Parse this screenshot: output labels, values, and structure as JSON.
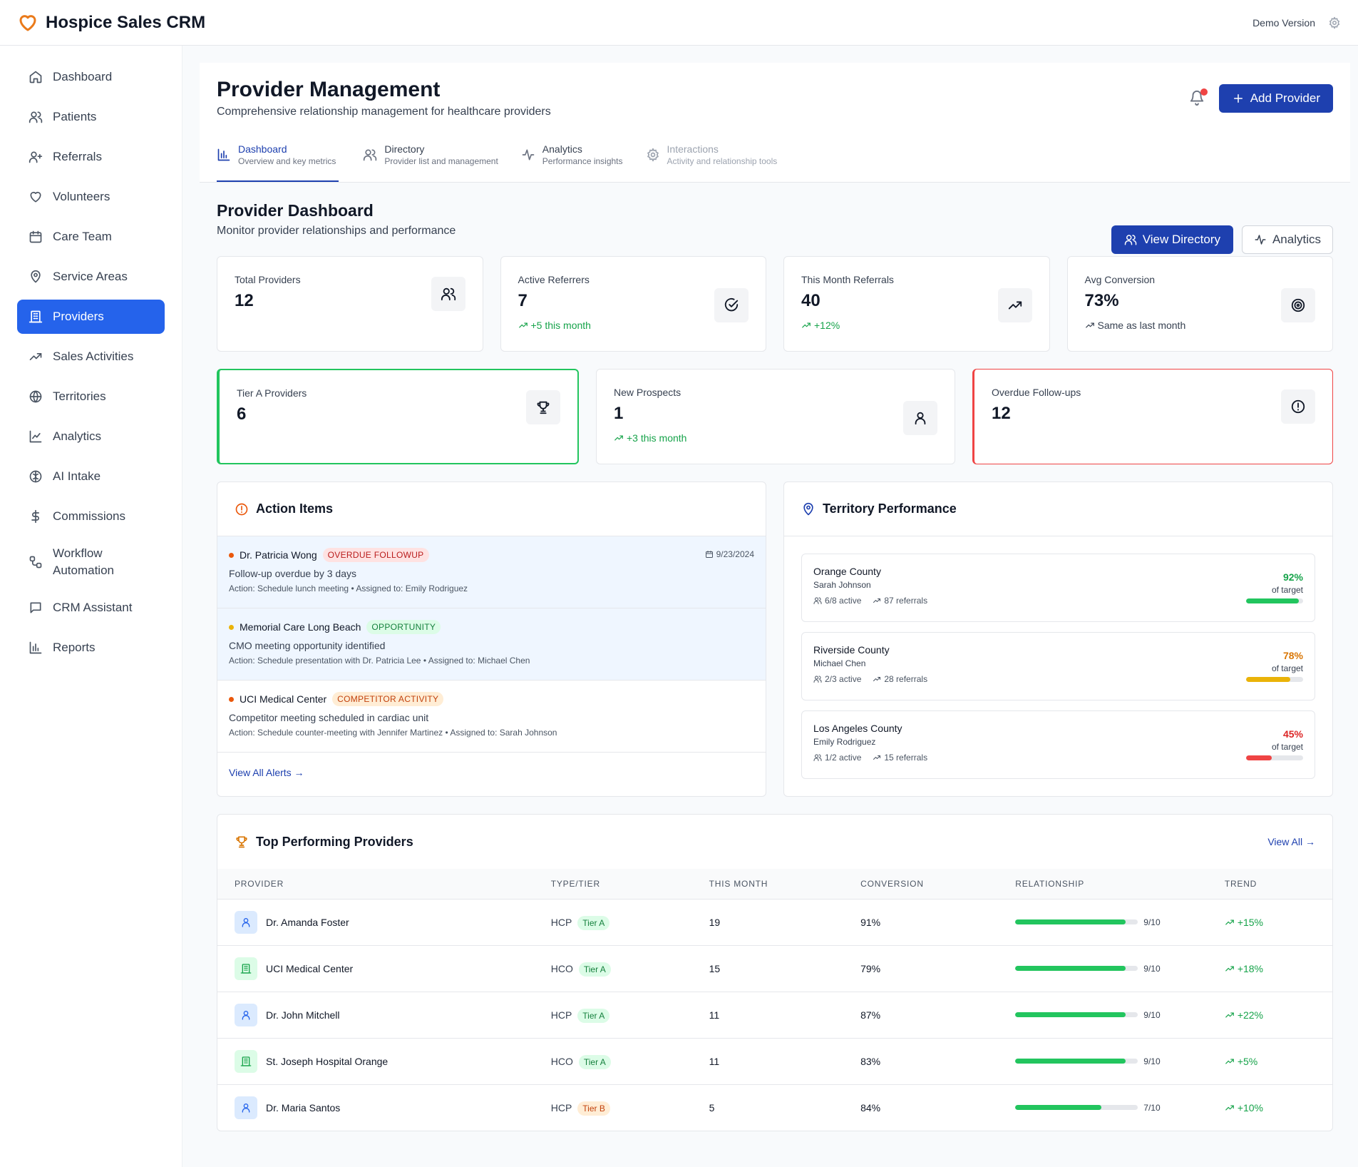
{
  "app": {
    "name": "Hospice Sales CRM",
    "version_label": "Demo Version",
    "brand_color": "#ea7a1a"
  },
  "sidebar": {
    "items": [
      {
        "label": "Dashboard",
        "icon": "home-icon"
      },
      {
        "label": "Patients",
        "icon": "users-icon"
      },
      {
        "label": "Referrals",
        "icon": "user-plus-icon"
      },
      {
        "label": "Volunteers",
        "icon": "heart-icon"
      },
      {
        "label": "Care Team",
        "icon": "calendar-icon"
      },
      {
        "label": "Service Areas",
        "icon": "map-pin-icon"
      },
      {
        "label": "Providers",
        "icon": "building-icon",
        "active": true
      },
      {
        "label": "Sales Activities",
        "icon": "trending-up-icon"
      },
      {
        "label": "Territories",
        "icon": "globe-icon"
      },
      {
        "label": "Analytics",
        "icon": "line-chart-icon"
      },
      {
        "label": "AI Intake",
        "icon": "brain-icon"
      },
      {
        "label": "Commissions",
        "icon": "dollar-icon"
      },
      {
        "label": "Workflow\nAutomation",
        "icon": "workflow-icon"
      },
      {
        "label": "CRM Assistant",
        "icon": "message-icon"
      },
      {
        "label": "Reports",
        "icon": "bar-chart-icon"
      }
    ]
  },
  "header": {
    "title": "Provider Management",
    "subtitle": "Comprehensive relationship management for healthcare providers",
    "add_button": "Add Provider",
    "tabs": [
      {
        "label": "Dashboard",
        "desc": "Overview and key metrics"
      },
      {
        "label": "Directory",
        "desc": "Provider list and management"
      },
      {
        "label": "Analytics",
        "desc": "Performance insights"
      },
      {
        "label": "Interactions",
        "desc": "Activity and relationship tools"
      }
    ]
  },
  "dashboard": {
    "title": "Provider Dashboard",
    "subtitle": "Monitor provider relationships and performance",
    "view_directory": "View Directory",
    "analytics": "Analytics"
  },
  "stats": [
    {
      "label": "Total Providers",
      "value": "12",
      "delta": ""
    },
    {
      "label": "Active Referrers",
      "value": "7",
      "delta": "+5 this month"
    },
    {
      "label": "This Month Referrals",
      "value": "40",
      "delta": "+12%"
    },
    {
      "label": "Avg Conversion",
      "value": "73%",
      "delta": "Same as last month"
    }
  ],
  "stats2": [
    {
      "label": "Tier A Providers",
      "value": "6",
      "delta": ""
    },
    {
      "label": "New Prospects",
      "value": "1",
      "delta": "+3 this month"
    },
    {
      "label": "Overdue Follow-ups",
      "value": "12",
      "delta": ""
    }
  ],
  "action_items": {
    "title": "Action Items",
    "items": [
      {
        "name": "Dr. Patricia Wong",
        "tag": "OVERDUE FOLLOWUP",
        "desc": "Follow-up overdue by 3 days",
        "meta": "Action: Schedule lunch meeting • Assigned to: Emily Rodriguez",
        "date": "9/23/2024"
      },
      {
        "name": "Memorial Care Long Beach",
        "tag": "OPPORTUNITY",
        "desc": "CMO meeting opportunity identified",
        "meta": "Action: Schedule presentation with Dr. Patricia Lee • Assigned to: Michael Chen",
        "date": ""
      },
      {
        "name": "UCI Medical Center",
        "tag": "COMPETITOR ACTIVITY",
        "desc": "Competitor meeting scheduled in cardiac unit",
        "meta": "Action: Schedule counter-meeting with Jennifer Martinez • Assigned to: Sarah Johnson",
        "date": ""
      }
    ],
    "view_all": "View All Alerts →"
  },
  "territory": {
    "title": "Territory Performance",
    "of_target": "of target",
    "items": [
      {
        "name": "Orange County",
        "rep": "Sarah Johnson",
        "active": "6/8 active",
        "referrals": "87 referrals",
        "pct_label": "92%",
        "pct": 0.92,
        "color": "#16a34a",
        "bar": "#22c55e"
      },
      {
        "name": "Riverside County",
        "rep": "Michael Chen",
        "active": "2/3 active",
        "referrals": "28 referrals",
        "pct_label": "78%",
        "pct": 0.78,
        "color": "#d97706",
        "bar": "#eab308"
      },
      {
        "name": "Los Angeles County",
        "rep": "Emily Rodriguez",
        "active": "1/2 active",
        "referrals": "15 referrals",
        "pct_label": "45%",
        "pct": 0.45,
        "color": "#dc2626",
        "bar": "#ef4444"
      }
    ]
  },
  "top_providers": {
    "title": "Top Performing Providers",
    "view_all": "View All →",
    "columns": [
      "PROVIDER",
      "TYPE/TIER",
      "THIS MONTH",
      "CONVERSION",
      "RELATIONSHIP",
      "TREND"
    ],
    "rows": [
      {
        "name": "Dr. Amanda Foster",
        "type": "HCP",
        "tier": "Tier A",
        "month": "19",
        "conversion": "91%",
        "rel_label": "9/10",
        "rel": 9,
        "trend": "+15%"
      },
      {
        "name": "UCI Medical Center",
        "type": "HCO",
        "tier": "Tier A",
        "month": "15",
        "conversion": "79%",
        "rel_label": "9/10",
        "rel": 9,
        "trend": "+18%"
      },
      {
        "name": "Dr. John Mitchell",
        "type": "HCP",
        "tier": "Tier A",
        "month": "11",
        "conversion": "87%",
        "rel_label": "9/10",
        "rel": 9,
        "trend": "+22%"
      },
      {
        "name": "St. Joseph Hospital Orange",
        "type": "HCO",
        "tier": "Tier A",
        "month": "11",
        "conversion": "83%",
        "rel_label": "9/10",
        "rel": 9,
        "trend": "+5%"
      },
      {
        "name": "Dr. Maria Santos",
        "type": "HCP",
        "tier": "Tier B",
        "month": "5",
        "conversion": "84%",
        "rel_label": "7/10",
        "rel": 7,
        "trend": "+10%"
      }
    ]
  }
}
